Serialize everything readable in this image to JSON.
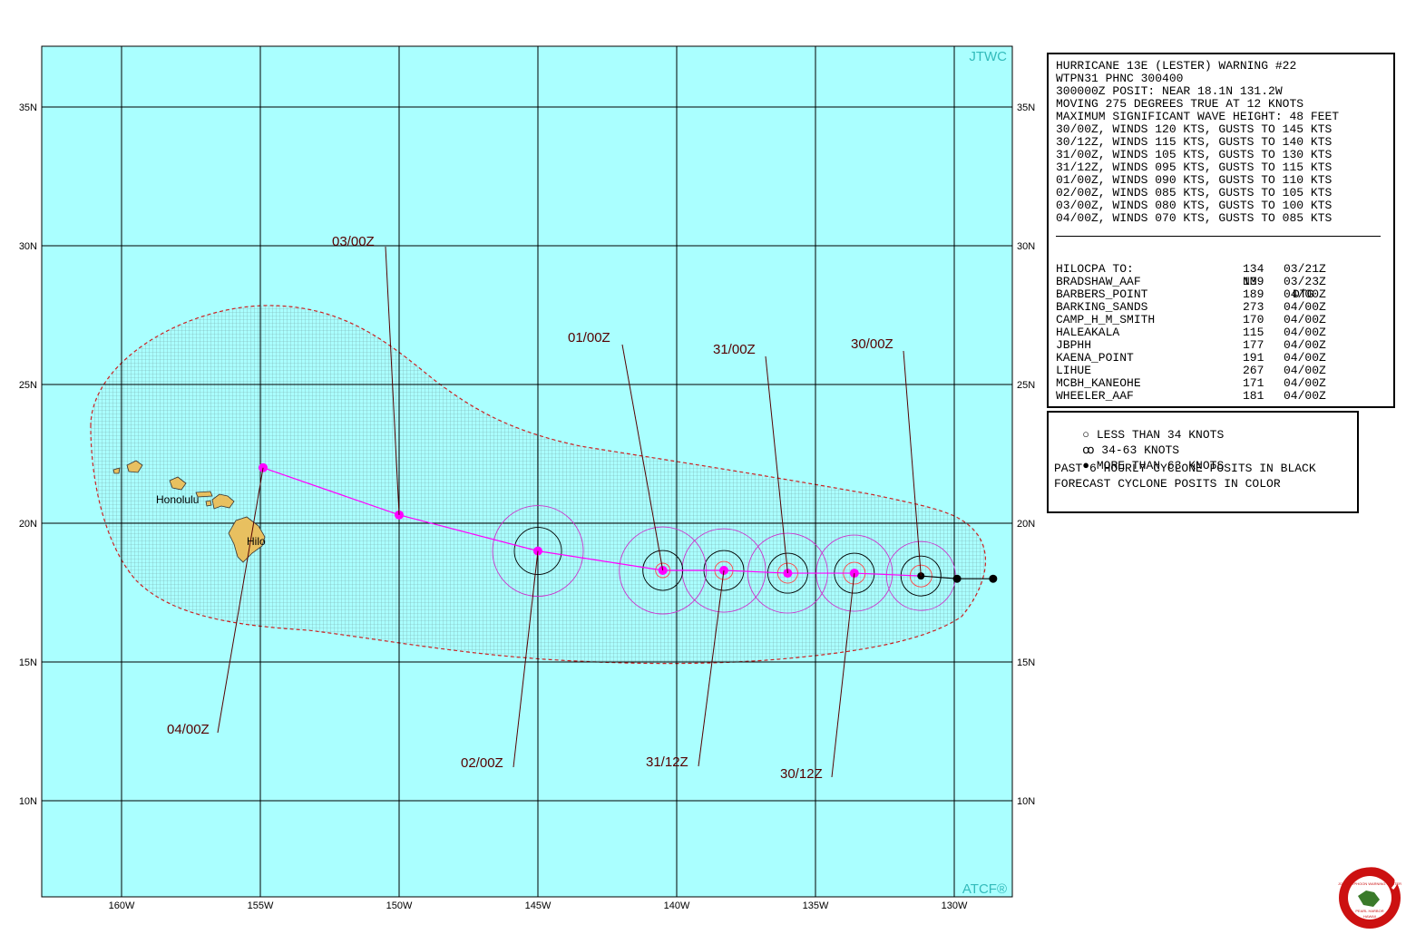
{
  "map": {
    "brand_top": "JTWC",
    "brand_bottom": "ATCF®",
    "lat_labels": [
      "35N",
      "30N",
      "25N",
      "20N",
      "15N",
      "10N"
    ],
    "lon_labels": [
      "160W",
      "155W",
      "150W",
      "145W",
      "140W",
      "135W",
      "130W"
    ],
    "place_labels": [
      "Honolulu",
      "Hilo"
    ],
    "colors": {
      "ocean": "#aaffff",
      "land": "#e8c060",
      "track": "#ff00ff",
      "swath": "#cc2222",
      "label": "#550000",
      "past": "#000000"
    }
  },
  "forecast": [
    {
      "tag": "30/00Z",
      "lat": 18.1,
      "lon": -131.2
    },
    {
      "tag": "30/12Z",
      "lat": 18.2,
      "lon": -133.6
    },
    {
      "tag": "31/00Z",
      "lat": 18.2,
      "lon": -136.0
    },
    {
      "tag": "31/12Z",
      "lat": 18.3,
      "lon": -138.3
    },
    {
      "tag": "01/00Z",
      "lat": 18.3,
      "lon": -140.5
    },
    {
      "tag": "02/00Z",
      "lat": 19.0,
      "lon": -145.0
    },
    {
      "tag": "03/00Z",
      "lat": 20.3,
      "lon": -150.0
    },
    {
      "tag": "04/00Z",
      "lat": 22.0,
      "lon": -154.9
    }
  ],
  "past": [
    {
      "lat": 18.0,
      "lon": -129.9
    },
    {
      "lat": 18.0,
      "lon": -128.6
    }
  ],
  "warning": {
    "header_lines": [
      "HURRICANE 13E (LESTER) WARNING #22",
      "WTPN31 PHNC 300400",
      "300000Z POSIT: NEAR 18.1N 131.2W",
      "MOVING 275 DEGREES TRUE AT 12 KNOTS",
      "MAXIMUM SIGNIFICANT WAVE HEIGHT: 48 FEET",
      "30/00Z, WINDS 120 KTS, GUSTS TO 145 KTS",
      "30/12Z, WINDS 115 KTS, GUSTS TO 140 KTS",
      "31/00Z, WINDS 105 KTS, GUSTS TO 130 KTS",
      "31/12Z, WINDS 095 KTS, GUSTS TO 115 KTS",
      "01/00Z, WINDS 090 KTS, GUSTS TO 110 KTS",
      "02/00Z, WINDS 085 KTS, GUSTS TO 105 KTS",
      "03/00Z, WINDS 080 KTS, GUSTS TO 100 KTS",
      "04/00Z, WINDS 070 KTS, GUSTS TO 085 KTS"
    ],
    "cpa_header": {
      "label": "CPA TO:",
      "nm": "NM",
      "dtg": "DTG"
    },
    "cpa_rows": [
      {
        "name": "HILO",
        "nm": "134",
        "dtg": "03/21Z"
      },
      {
        "name": "BRADSHAW_AAF",
        "nm": "139",
        "dtg": "03/23Z"
      },
      {
        "name": "BARBERS_POINT",
        "nm": "189",
        "dtg": "04/00Z"
      },
      {
        "name": "BARKING_SANDS",
        "nm": "273",
        "dtg": "04/00Z"
      },
      {
        "name": "CAMP_H_M_SMITH",
        "nm": "170",
        "dtg": "04/00Z"
      },
      {
        "name": "HALEAKALA",
        "nm": "115",
        "dtg": "04/00Z"
      },
      {
        "name": "JBPHH",
        "nm": "177",
        "dtg": "04/00Z"
      },
      {
        "name": "KAENA_POINT",
        "nm": "191",
        "dtg": "04/00Z"
      },
      {
        "name": "LIHUE",
        "nm": "267",
        "dtg": "04/00Z"
      },
      {
        "name": "MCBH_KANEOHE",
        "nm": "171",
        "dtg": "04/00Z"
      },
      {
        "name": "WHEELER_AAF",
        "nm": "181",
        "dtg": "04/00Z"
      }
    ]
  },
  "legend": {
    "lt34": "LESS THAN 34 KNOTS",
    "r34_63": "34-63 KNOTS",
    "gt63": "MORE THAN 63 KNOTS",
    "past_note": "PAST 6 HOURLY CYCLONE POSITS IN BLACK",
    "fcst_note": "FORECAST CYCLONE POSITS IN COLOR"
  },
  "logo": {
    "name": "JOINT TYPHOON WARNING CENTER",
    "loc1": "PEARL HARBOR",
    "loc2": "HAWAII"
  }
}
